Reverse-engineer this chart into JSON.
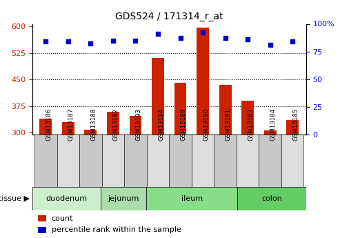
{
  "title": "GDS524 / 171314_r_at",
  "samples": [
    "GSM13186",
    "GSM13187",
    "GSM13188",
    "GSM13192",
    "GSM13193",
    "GSM13194",
    "GSM13189",
    "GSM13190",
    "GSM13191",
    "GSM13183",
    "GSM13184",
    "GSM13185"
  ],
  "count_values": [
    340,
    330,
    308,
    360,
    348,
    510,
    440,
    597,
    435,
    390,
    307,
    335
  ],
  "percentile_values": [
    84,
    84,
    82,
    85,
    85,
    91,
    87,
    92,
    87,
    86,
    81,
    84
  ],
  "tissues": [
    {
      "label": "duodenum",
      "start": 0,
      "end": 3
    },
    {
      "label": "jejunum",
      "start": 3,
      "end": 5
    },
    {
      "label": "ileum",
      "start": 5,
      "end": 9
    },
    {
      "label": "colon",
      "start": 9,
      "end": 12
    }
  ],
  "tissue_colors": [
    "#cceecc",
    "#aaddaa",
    "#88dd88",
    "#66cc66"
  ],
  "ylim_left": [
    295,
    607
  ],
  "ylim_right": [
    0,
    100
  ],
  "yticks_left": [
    300,
    375,
    450,
    525,
    600
  ],
  "yticks_right": [
    0,
    25,
    50,
    75,
    100
  ],
  "hlines": [
    375,
    450,
    525
  ],
  "bar_color": "#cc2200",
  "dot_color": "#0000cc",
  "bar_width": 0.55,
  "tick_label_color_left": "#cc2200",
  "tick_label_color_right": "#0000cc",
  "legend_count_color": "#cc2200",
  "legend_pct_color": "#0000cc",
  "sample_cell_colors": [
    "#c8c8c8",
    "#dddddd",
    "#c8c8c8",
    "#dddddd",
    "#c8c8c8",
    "#dddddd",
    "#c8c8c8",
    "#dddddd",
    "#c8c8c8",
    "#dddddd",
    "#c8c8c8",
    "#dddddd"
  ]
}
